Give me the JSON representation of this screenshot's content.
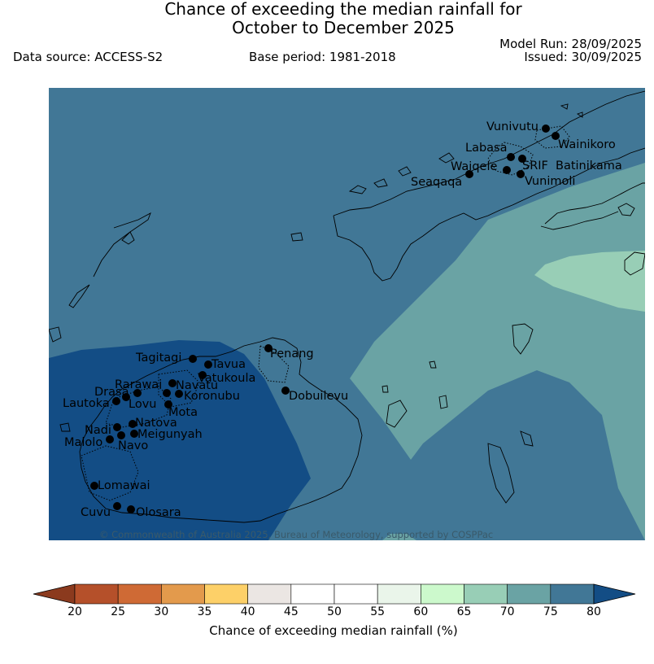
{
  "title_line1": "Chance of exceeding the median rainfall for",
  "title_line2": "October to December 2025",
  "data_source": "Data source: ACCESS-S2",
  "base_period": "Base period: 1981-2018",
  "model_run": "Model Run: 28/09/2025",
  "issued": "Issued: 30/09/2025",
  "copyright": "© Commonwealth of Australia 2025, Bureau of Meteorology, supported by COSPPac",
  "colorbar": {
    "label": "Chance of exceeding median rainfall (%)",
    "ticks": [
      "20",
      "25",
      "30",
      "35",
      "40",
      "45",
      "50",
      "55",
      "60",
      "65",
      "70",
      "75",
      "80"
    ],
    "bins": [
      {
        "range": "<20",
        "color": "#8b3a1e"
      },
      {
        "range": "20-25",
        "color": "#b5502a"
      },
      {
        "range": "25-30",
        "color": "#cf6a35"
      },
      {
        "range": "30-35",
        "color": "#e39a4c"
      },
      {
        "range": "35-40",
        "color": "#fdd068"
      },
      {
        "range": "40-45",
        "color": "#ebe6e3"
      },
      {
        "range": "45-50",
        "color": "#ffffff"
      },
      {
        "range": "50-55",
        "color": "#ffffff"
      },
      {
        "range": "55-60",
        "color": "#eaf5ea"
      },
      {
        "range": "60-65",
        "color": "#ccf9cc"
      },
      {
        "range": "65-70",
        "color": "#98ceb6"
      },
      {
        "range": "70-75",
        "color": "#6aa3a4"
      },
      {
        "range": "75-80",
        "color": "#417796"
      },
      {
        "range": ">80",
        "color": "#134d85"
      }
    ]
  },
  "stations": [
    "Vunivutu",
    "Wainikoro",
    "Labasa",
    "Waiqele",
    "SRIF",
    "Batinikama",
    "Seaqaqa",
    "Vunimoli",
    "Penang",
    "Tagitagi",
    "Tavua",
    "Rarawai",
    "Navatu",
    "Vatukoula",
    "Drasa",
    "Koronubu",
    "Lautoka",
    "Lovu",
    "Mota",
    "Natova",
    "Nadi",
    "Meigunyah",
    "Malolo",
    "Navo",
    "Dobuilevu",
    "Lomawai",
    "Cuvu",
    "Olosara"
  ]
}
